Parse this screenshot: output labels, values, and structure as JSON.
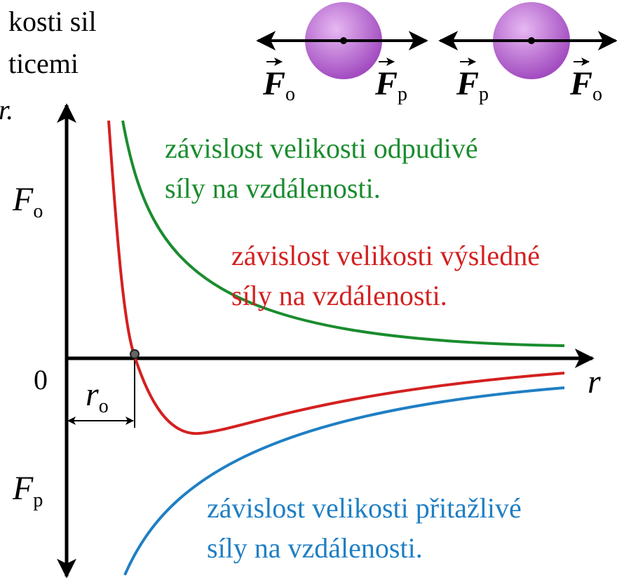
{
  "heading_fragment": {
    "lines": [
      "kosti sil",
      "ticemi",
      "r."
    ]
  },
  "particles": [
    {
      "left_label": {
        "symbol": "F",
        "subscript": "o"
      },
      "right_label": {
        "symbol": "F",
        "subscript": "p"
      }
    },
    {
      "left_label": {
        "symbol": "F",
        "subscript": "p"
      },
      "right_label": {
        "symbol": "F",
        "subscript": "o"
      }
    }
  ],
  "axes": {
    "y_positive": {
      "symbol": "F",
      "subscript": "o"
    },
    "y_negative": {
      "symbol": "F",
      "subscript": "p"
    },
    "origin": "0",
    "x_label": "r",
    "equilibrium": {
      "symbol": "r",
      "subscript": "o"
    }
  },
  "curves": [
    {
      "label_lines": [
        "závislost velikosti odpudivé",
        "síly na vzdálenosti."
      ],
      "color": "#1a8c2e"
    },
    {
      "label_lines": [
        "závislost velikosti výsledné",
        "síly na vzdálenosti."
      ],
      "color": "#d42020"
    },
    {
      "label_lines": [
        "závislost velikosti přitažlivé",
        "síly na vzdálenosti."
      ],
      "color": "#1f7fc4"
    }
  ]
}
